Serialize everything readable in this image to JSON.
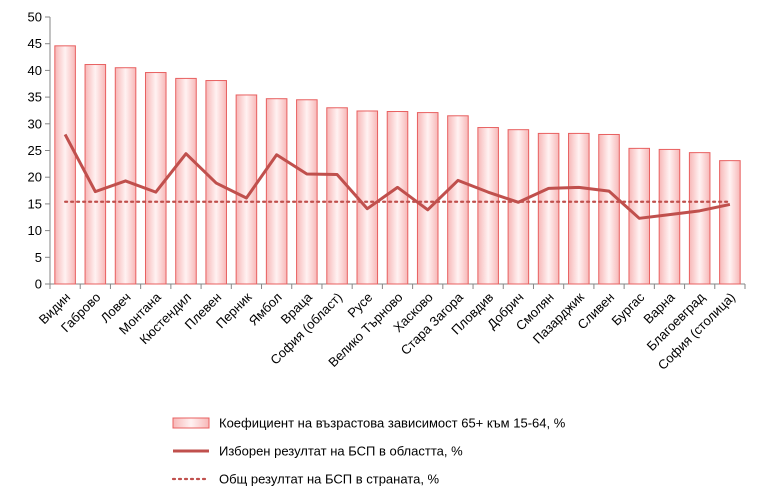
{
  "chart_data": {
    "type": "bar",
    "categories": [
      "Видин",
      "Габрово",
      "Ловеч",
      "Монтана",
      "Кюстендил",
      "Плевен",
      "Перник",
      "Ямбол",
      "Враца",
      "София (област)",
      "Русе",
      "Велико Търново",
      "Хасково",
      "Стара Загора",
      "Пловдив",
      "Добрич",
      "Смолян",
      "Пазарджик",
      "Сливен",
      "Бургас",
      "Варна",
      "Благоевград",
      "София (столица)"
    ],
    "series": [
      {
        "name": "Коефициент на възрастова зависимост 65+ към 15-64, %",
        "kind": "bar",
        "color": "#e86060",
        "values": [
          44.6,
          41.1,
          40.5,
          39.6,
          38.5,
          38.1,
          35.4,
          34.7,
          34.5,
          33.0,
          32.4,
          32.3,
          32.1,
          31.5,
          29.3,
          28.9,
          28.2,
          28.2,
          28.0,
          25.4,
          25.2,
          24.6,
          23.1
        ]
      },
      {
        "name": "Изборен резултат на БСП в областта, %",
        "kind": "line",
        "color": "#c0504d",
        "values": [
          28.0,
          17.3,
          19.3,
          17.2,
          24.4,
          18.9,
          16.1,
          24.2,
          20.6,
          20.5,
          14.1,
          18.1,
          13.9,
          19.4,
          17.2,
          15.3,
          17.9,
          18.1,
          17.4,
          12.3,
          13.0,
          13.7,
          14.9
        ]
      },
      {
        "name": "Общ резултат на БСП в страната, %",
        "kind": "dotted-line",
        "color": "#c0504d",
        "values": [
          15.4,
          15.4,
          15.4,
          15.4,
          15.4,
          15.4,
          15.4,
          15.4,
          15.4,
          15.4,
          15.4,
          15.4,
          15.4,
          15.4,
          15.4,
          15.4,
          15.4,
          15.4,
          15.4,
          15.4,
          15.4,
          15.4,
          15.4
        ]
      }
    ],
    "ylim": [
      0,
      50
    ],
    "yticks": [
      0,
      5,
      10,
      15,
      20,
      25,
      30,
      35,
      40,
      45,
      50
    ],
    "grid": false,
    "legend_position": "bottom"
  }
}
